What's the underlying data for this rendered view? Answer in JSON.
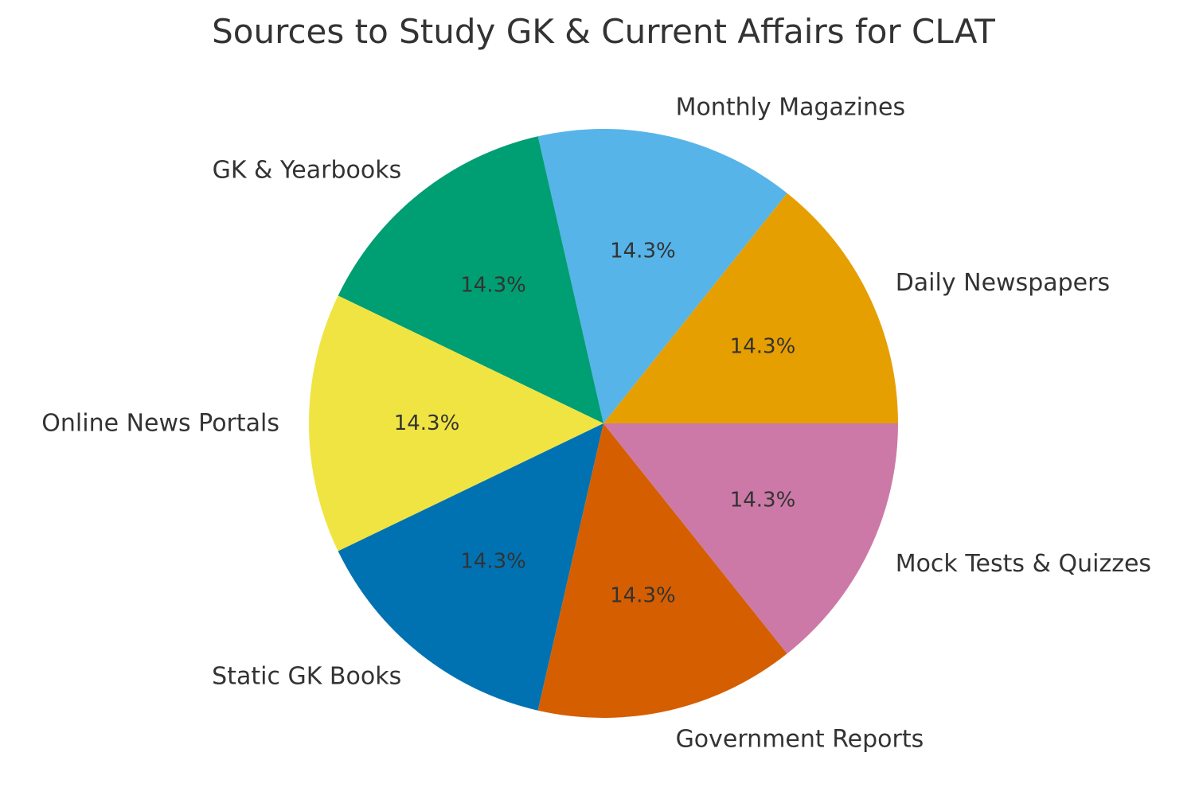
{
  "chart_data": {
    "type": "pie",
    "title": "Sources to Study GK & Current Affairs for CLAT",
    "start_angle_deg": 0,
    "direction": "counterclockwise",
    "slices": [
      {
        "label": "Daily Newspapers",
        "value": 1,
        "pct_label": "14.3%",
        "color": "#E69F00"
      },
      {
        "label": "Monthly Magazines",
        "value": 1,
        "pct_label": "14.3%",
        "color": "#56B4E9"
      },
      {
        "label": "GK & Yearbooks",
        "value": 1,
        "pct_label": "14.3%",
        "color": "#009E73"
      },
      {
        "label": "Online News Portals",
        "value": 1,
        "pct_label": "14.3%",
        "color": "#F0E442"
      },
      {
        "label": "Static GK Books",
        "value": 1,
        "pct_label": "14.3%",
        "color": "#0072B2"
      },
      {
        "label": "Government Reports",
        "value": 1,
        "pct_label": "14.3%",
        "color": "#D55E00"
      },
      {
        "label": "Mock Tests & Quizzes",
        "value": 1,
        "pct_label": "14.3%",
        "color": "#CC79A7"
      }
    ]
  }
}
